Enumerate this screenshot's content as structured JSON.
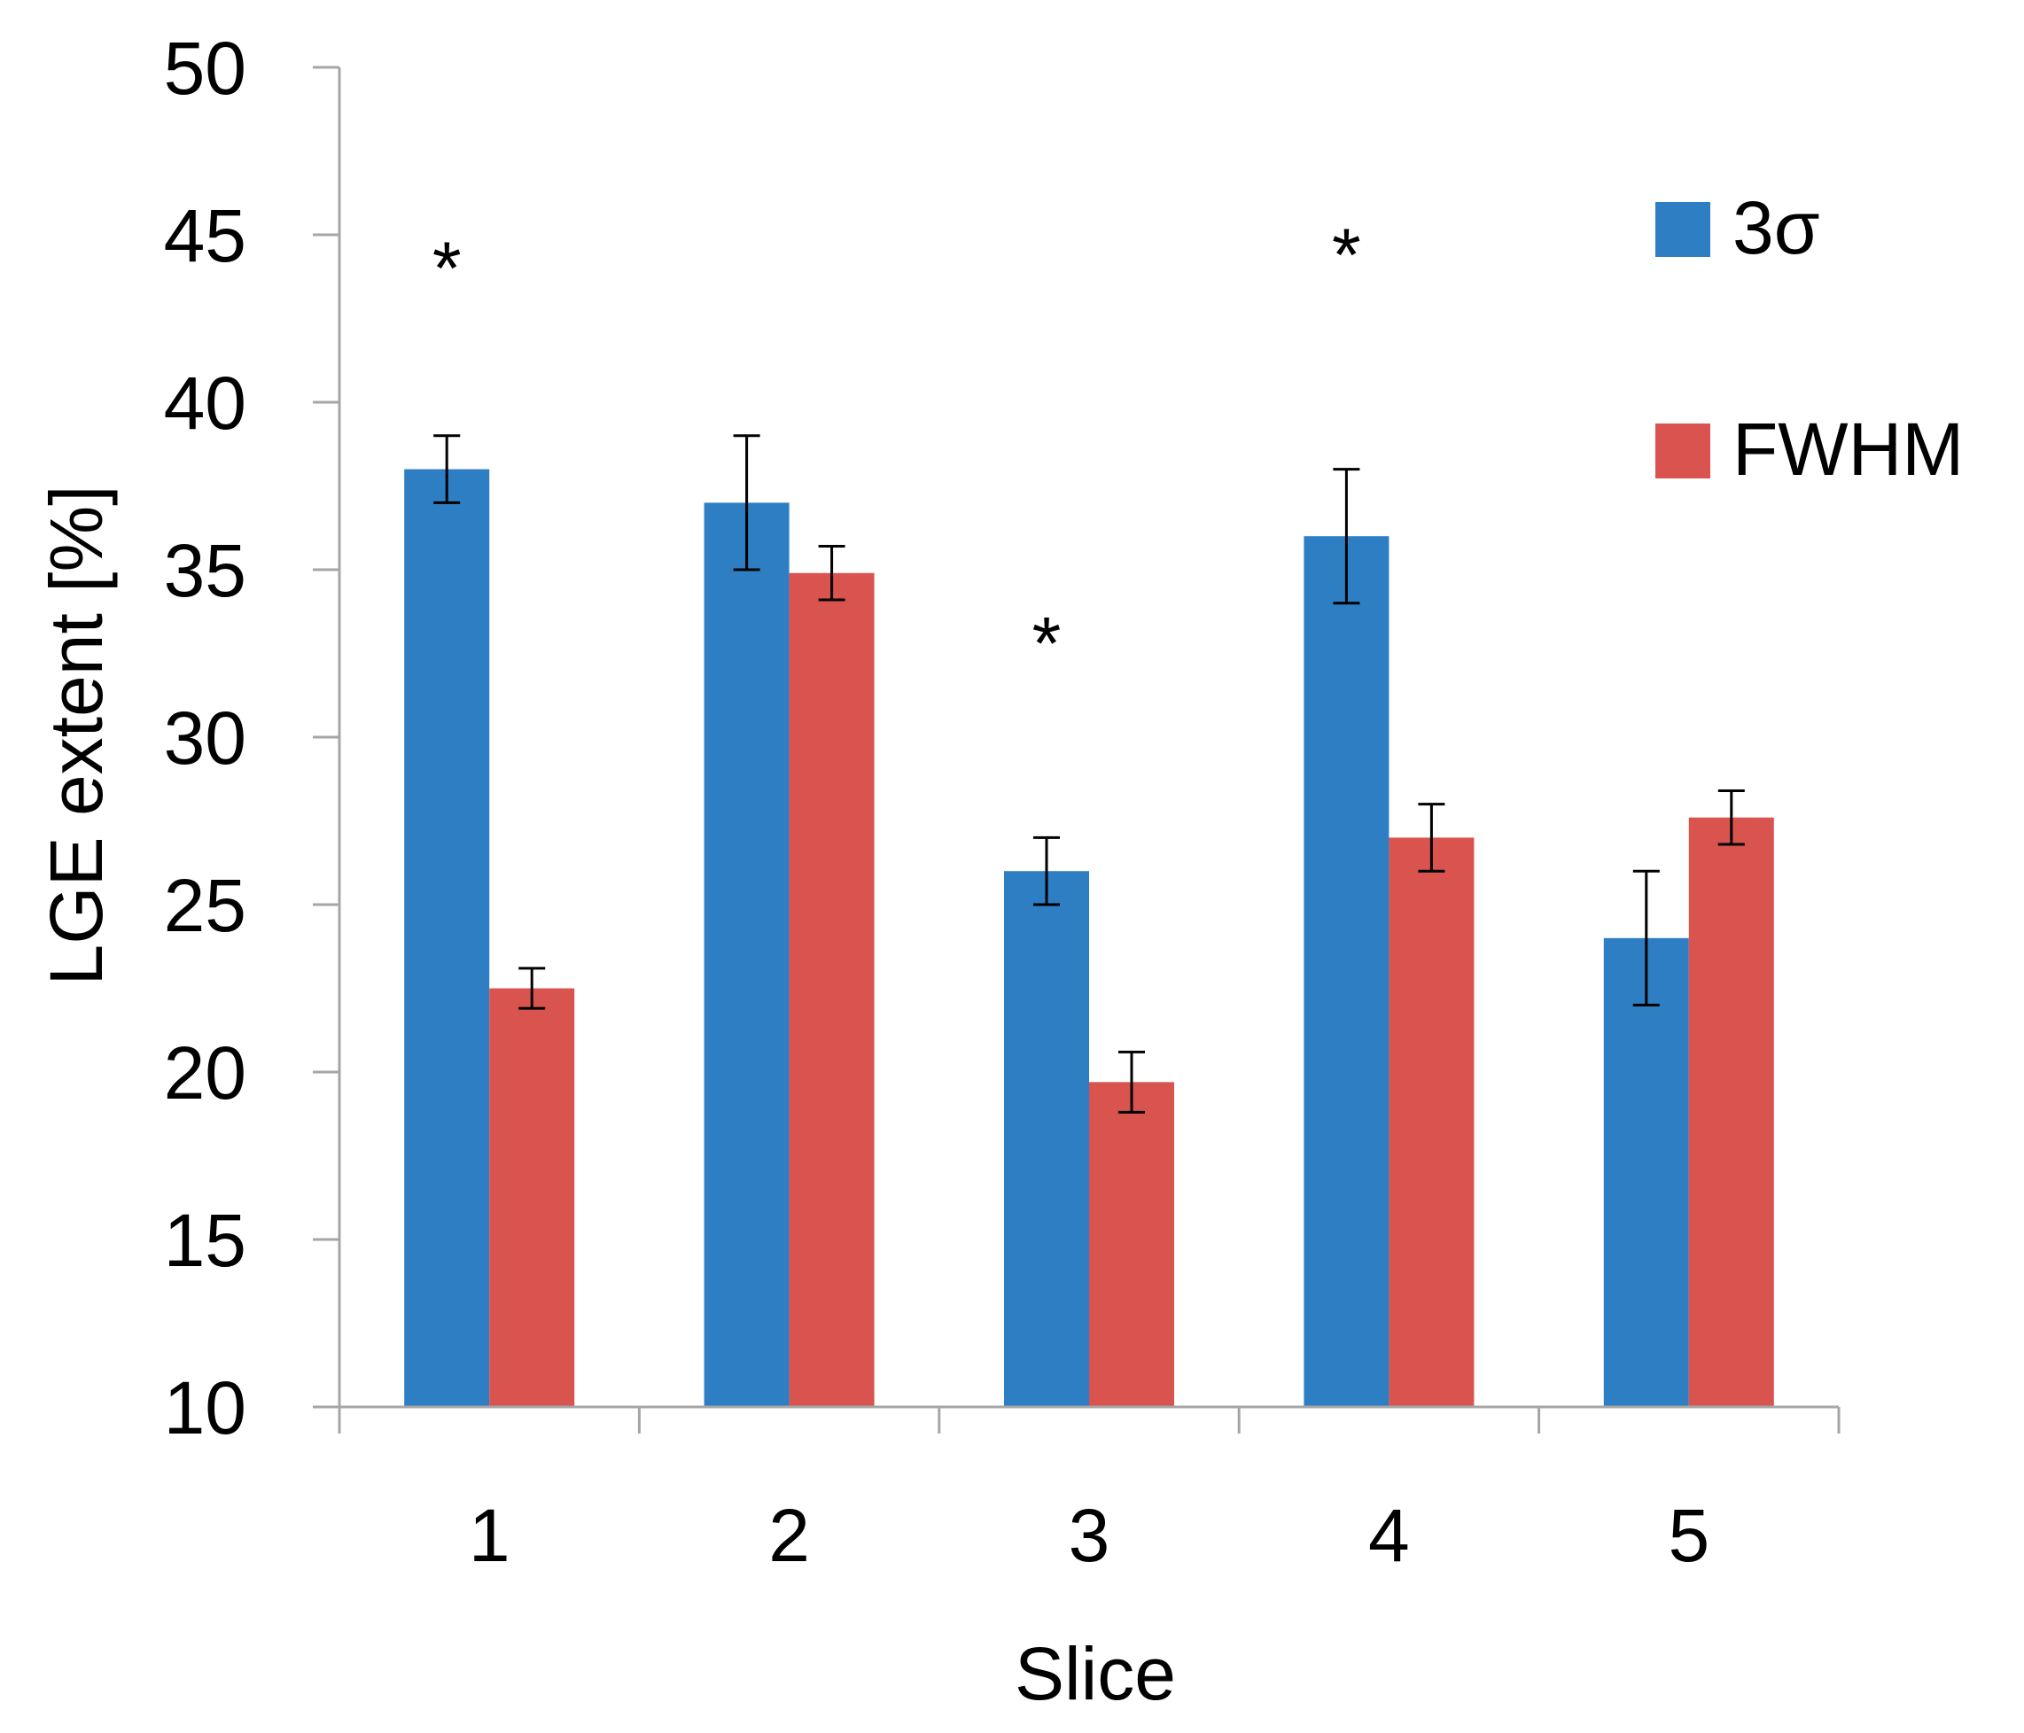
{
  "chart_data": {
    "type": "bar",
    "title": "",
    "xlabel": "Slice",
    "ylabel": "LGE extent [%]",
    "ylim": [
      10,
      50
    ],
    "yticks": [
      10,
      15,
      20,
      25,
      30,
      35,
      40,
      45,
      50
    ],
    "categories": [
      "1",
      "2",
      "3",
      "4",
      "5"
    ],
    "series": [
      {
        "name": "3σ",
        "color": "#2e7ec4",
        "values": [
          38,
          37,
          26,
          36,
          24
        ],
        "errors": [
          1,
          2,
          1,
          2,
          2
        ]
      },
      {
        "name": "FWHM",
        "color": "#d9534f",
        "values": [
          22.5,
          34.9,
          19.7,
          27,
          27.6
        ],
        "errors": [
          0.6,
          0.8,
          0.9,
          1,
          0.8
        ]
      }
    ],
    "annotations": [
      {
        "text": "*",
        "category": "1",
        "y": 44.3
      },
      {
        "text": "*",
        "category": "3",
        "y": 33.1
      },
      {
        "text": "*",
        "category": "4",
        "y": 44.7
      }
    ],
    "legend_position": "top-right",
    "grid": false
  }
}
